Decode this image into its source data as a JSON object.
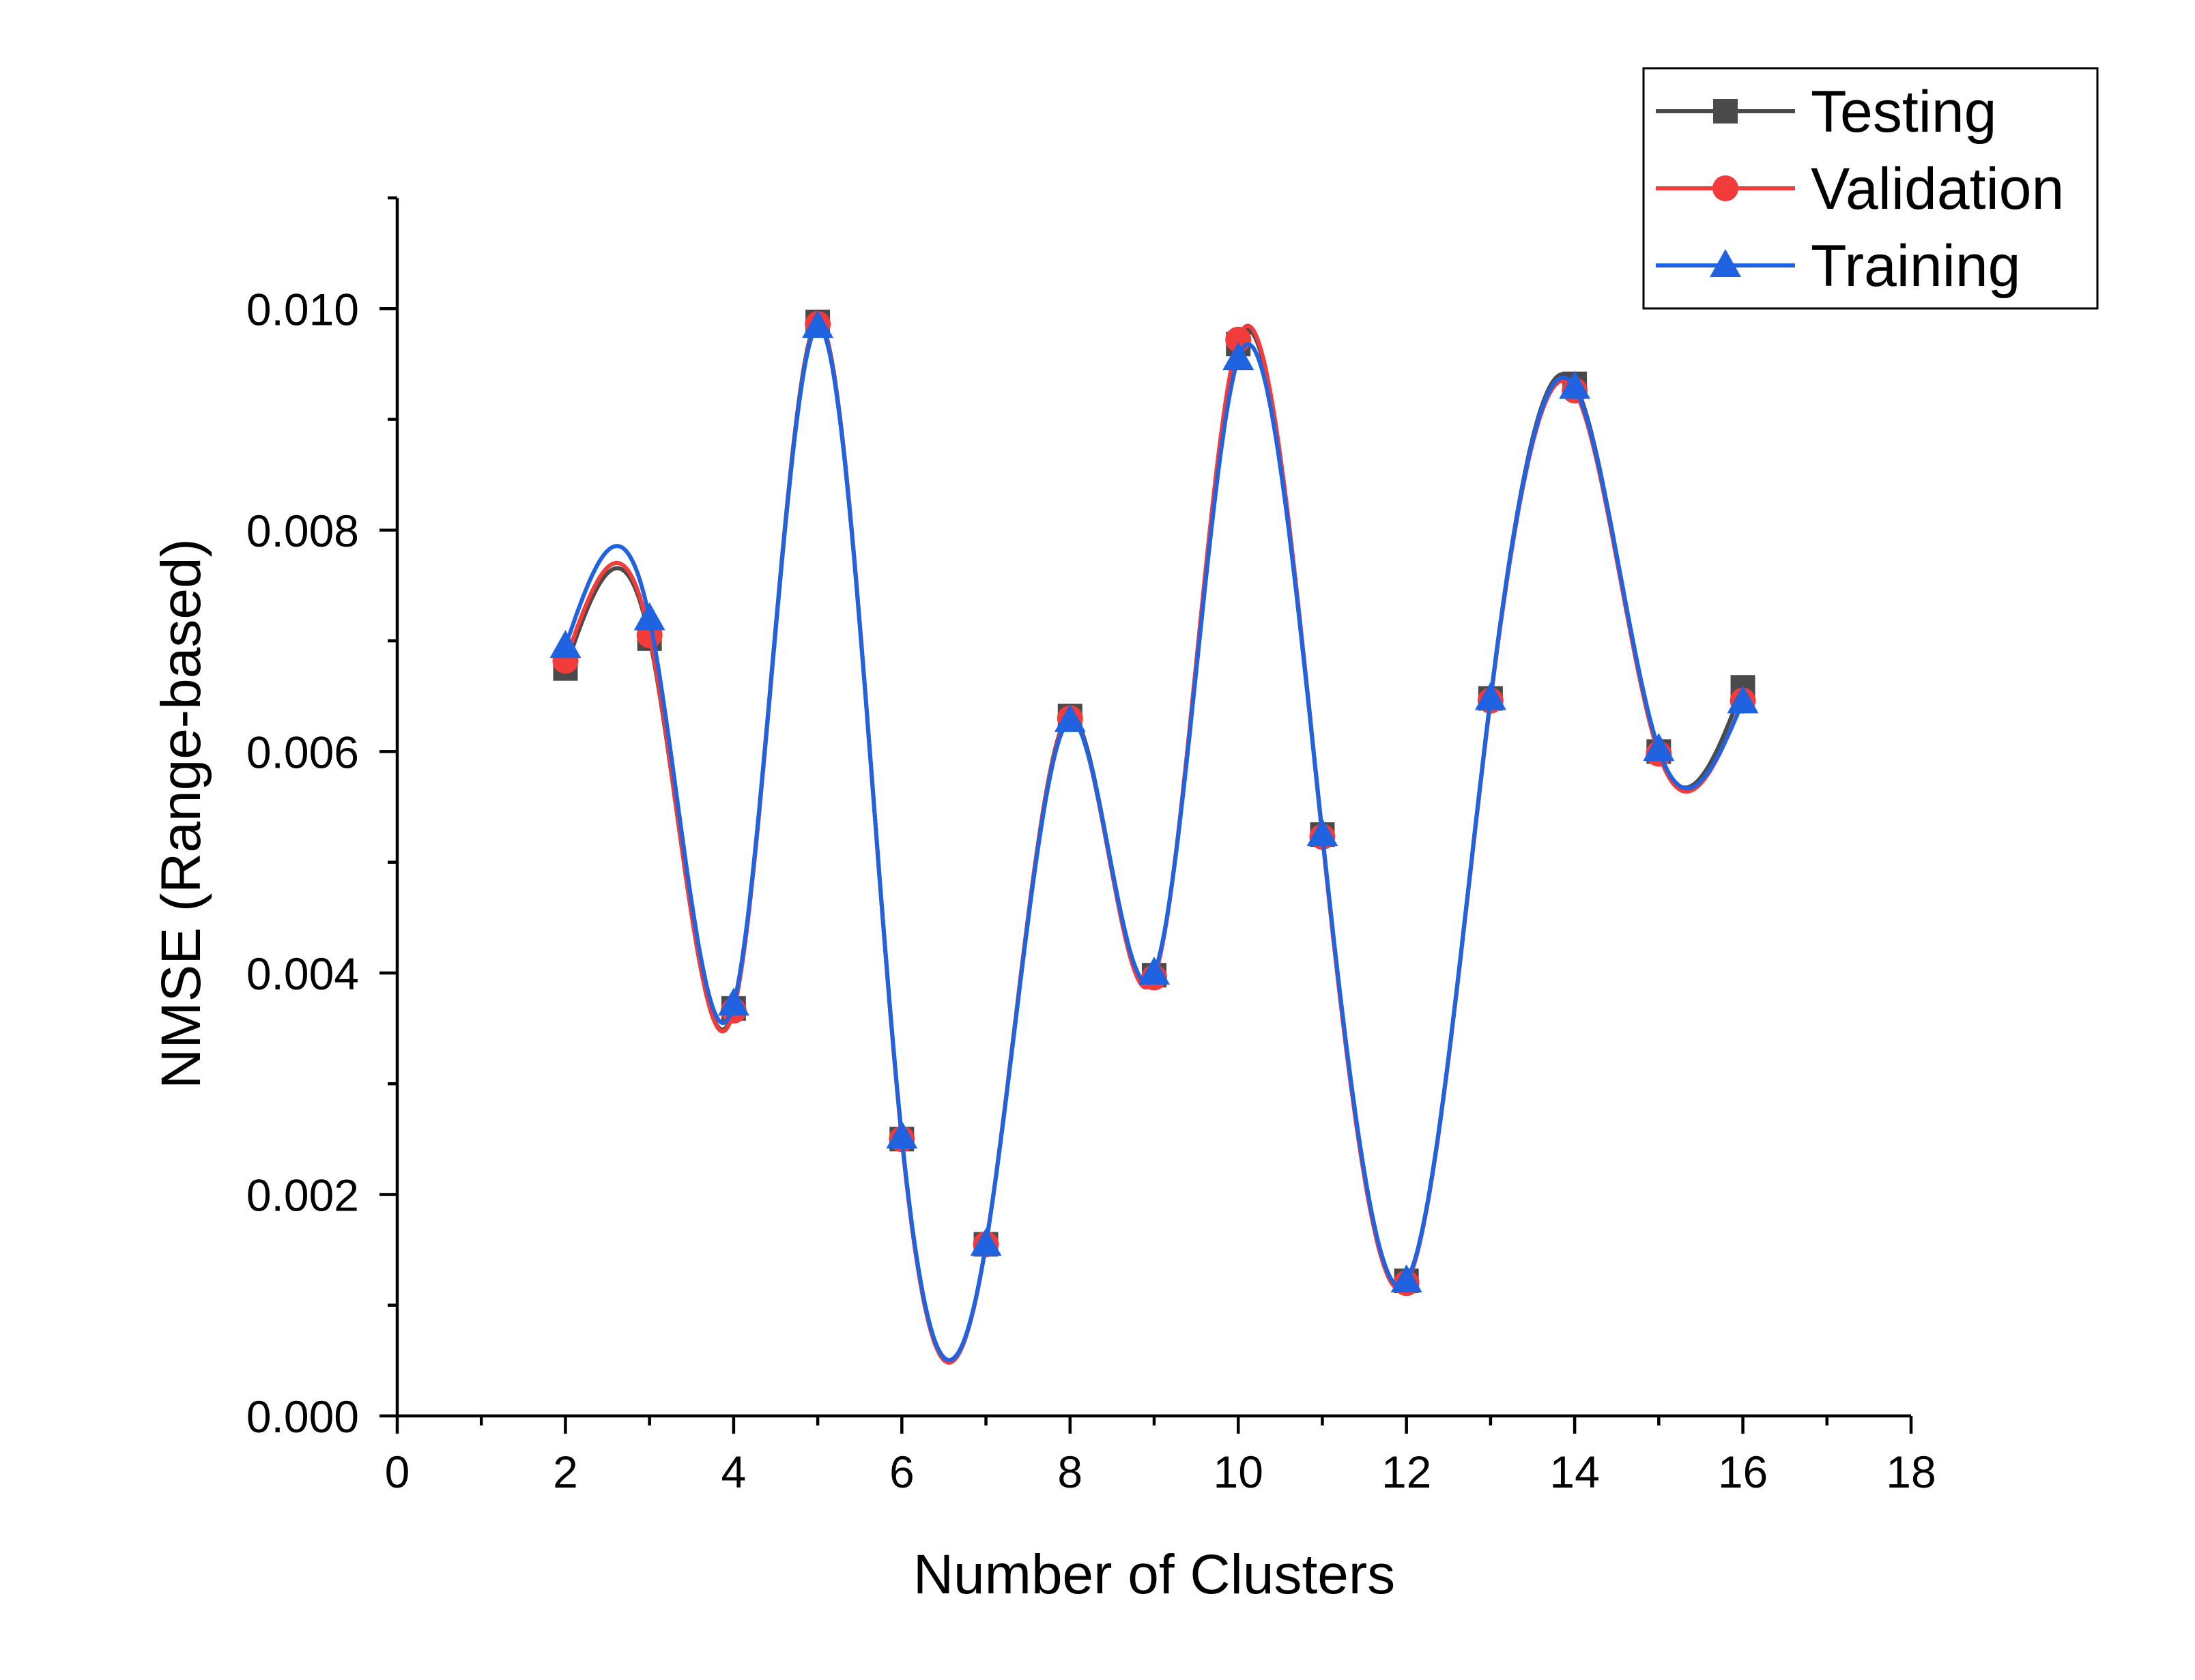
{
  "chart_data": {
    "type": "line",
    "title": "",
    "xlabel": "Number of Clusters",
    "ylabel": "NMSE (Range-based)",
    "xlim": [
      0,
      18
    ],
    "ylim": [
      0,
      0.011
    ],
    "x_ticks": [
      0,
      2,
      4,
      6,
      8,
      10,
      12,
      14,
      16,
      18
    ],
    "x_tick_labels": [
      "0",
      "2",
      "4",
      "6",
      "8",
      "10",
      "12",
      "14",
      "16",
      "18"
    ],
    "y_ticks": [
      0,
      0.002,
      0.004,
      0.006,
      0.008,
      0.01
    ],
    "y_tick_labels": [
      "0.000",
      "0.002",
      "0.004",
      "0.006",
      "0.008",
      "0.010"
    ],
    "grid": false,
    "legend_position": "top-right",
    "smoothed": true,
    "x": [
      2,
      3,
      4,
      5,
      6,
      7,
      8,
      9,
      10,
      11,
      12,
      13,
      14,
      15,
      16
    ],
    "series": [
      {
        "name": "Testing",
        "color": "#4a4a4a",
        "marker": "square",
        "values": [
          0.00675,
          0.00702,
          0.00368,
          0.00988,
          0.0025,
          0.00155,
          0.00632,
          0.00398,
          0.00968,
          0.00525,
          0.00122,
          0.00648,
          0.00932,
          0.006,
          0.00658
        ]
      },
      {
        "name": "Validation",
        "color": "#f23b3b",
        "marker": "circle",
        "values": [
          0.00682,
          0.00705,
          0.00366,
          0.00986,
          0.0025,
          0.00155,
          0.0063,
          0.00396,
          0.00972,
          0.00523,
          0.0012,
          0.00646,
          0.00926,
          0.00598,
          0.00646
        ]
      },
      {
        "name": "Training",
        "color": "#1f63e0",
        "marker": "triangle",
        "values": [
          0.00695,
          0.0072,
          0.00372,
          0.00984,
          0.00252,
          0.00155,
          0.00628,
          0.004,
          0.00955,
          0.00525,
          0.00122,
          0.00648,
          0.00929,
          0.00602,
          0.00645
        ]
      }
    ]
  }
}
